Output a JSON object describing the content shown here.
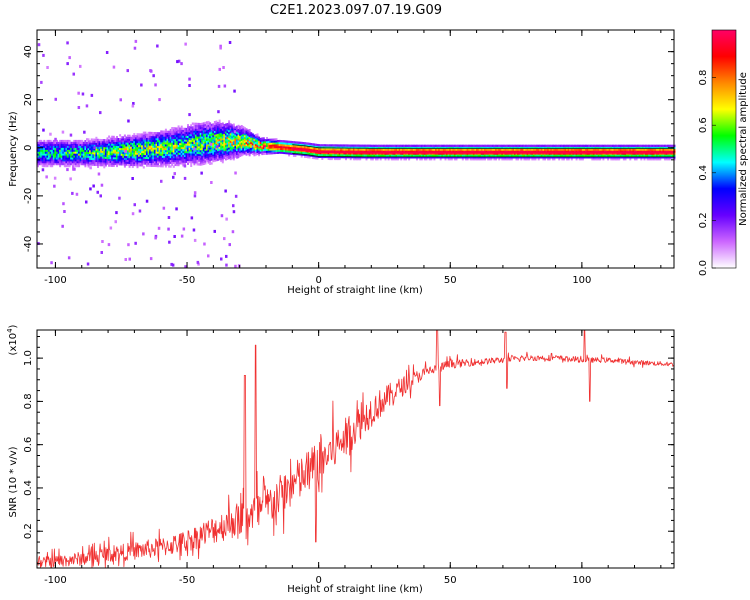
{
  "title": "C2E1.2023.097.07.19.G09",
  "chart_data": [
    {
      "type": "heatmap",
      "name": "spectrogram",
      "xlabel": "Height of straight line (km)",
      "ylabel": "Frequency (Hz)",
      "xlim": [
        -107,
        135
      ],
      "ylim": [
        -50,
        49
      ],
      "xticks": [
        -100,
        -50,
        0,
        50,
        100
      ],
      "xtick_labels": [
        "-100",
        "-50",
        "0",
        "50",
        "100"
      ],
      "yticks": [
        -40,
        -20,
        0,
        20,
        40
      ],
      "ytick_labels": [
        "-40",
        "-20",
        "0",
        "20",
        "40"
      ],
      "ridge": {
        "x": [
          -107,
          -90,
          -70,
          -55,
          -45,
          -35,
          -28,
          -22,
          -15,
          -5,
          0,
          20,
          50,
          100,
          135
        ],
        "y": [
          -2.5,
          -2.5,
          -1.5,
          0,
          1.5,
          2.5,
          2.2,
          0.5,
          0,
          -1,
          -1.8,
          -2,
          -2,
          -2,
          -2
        ],
        "spread_hz": [
          5,
          5,
          6,
          7,
          8,
          7,
          5,
          3,
          2.5,
          2.5,
          2.5,
          2.5,
          2.5,
          2.5,
          2.5
        ],
        "peak_amplitude": [
          0.5,
          0.55,
          0.65,
          0.6,
          0.6,
          0.7,
          0.75,
          0.85,
          0.95,
          0.95,
          0.97,
          0.97,
          0.97,
          0.98,
          0.98
        ]
      },
      "scatter_region": {
        "x_range": [
          -107,
          -30
        ],
        "y_range": [
          -50,
          45
        ],
        "amplitude": 0.15
      },
      "colorbar": {
        "label": "Normalized spectral amplitude",
        "range": [
          0,
          1
        ],
        "ticks": [
          0.0,
          0.2,
          0.4,
          0.6,
          0.8
        ],
        "tick_labels": [
          "0.0",
          "0.2",
          "0.4",
          "0.6",
          "0.8"
        ],
        "colors": [
          "#ffffff",
          "#cc66ff",
          "#6600ff",
          "#0000ff",
          "#00ffff",
          "#00ff00",
          "#ffff00",
          "#ff8800",
          "#ff0000",
          "#ff0066"
        ]
      }
    },
    {
      "type": "line",
      "name": "snr",
      "xlabel": "Height of straight line (km)",
      "ylabel": "SNR (10 * v/v)",
      "multiplier_label": "(x10",
      "multiplier_exp": "4",
      "multiplier_close": ")",
      "xlim": [
        -107,
        135
      ],
      "ylim": [
        0.03,
        1.13
      ],
      "xticks": [
        -100,
        -50,
        0,
        50,
        100
      ],
      "xtick_labels": [
        "-100",
        "-50",
        "0",
        "50",
        "100"
      ],
      "yticks": [
        0.2,
        0.4,
        0.6,
        0.8,
        1.0
      ],
      "ytick_labels": [
        "0.2",
        "0.4",
        "0.6",
        "0.8",
        "1.0"
      ],
      "color": "#f03030",
      "envelope": {
        "x": [
          -107,
          -90,
          -80,
          -60,
          -50,
          -40,
          -30,
          -20,
          -10,
          0,
          10,
          20,
          30,
          40,
          50,
          60,
          70,
          80,
          90,
          100,
          110,
          120,
          135
        ],
        "y": [
          0.05,
          0.07,
          0.09,
          0.12,
          0.15,
          0.2,
          0.25,
          0.3,
          0.4,
          0.5,
          0.62,
          0.75,
          0.85,
          0.93,
          0.97,
          0.98,
          0.99,
          1.0,
          1.0,
          0.99,
          0.99,
          0.98,
          0.97
        ]
      },
      "noise_amplitude": {
        "x": [
          -107,
          -50,
          -25,
          0,
          20,
          40,
          60,
          135
        ],
        "y": [
          0.05,
          0.1,
          0.18,
          0.22,
          0.15,
          0.05,
          0.03,
          0.02
        ]
      },
      "spikes": [
        {
          "x": -28,
          "y": 0.92
        },
        {
          "x": -24,
          "y": 1.06
        },
        {
          "x": -1,
          "y": 0.15
        },
        {
          "x": 45,
          "y": 1.13
        },
        {
          "x": 46,
          "y": 0.78
        },
        {
          "x": 71,
          "y": 1.12
        },
        {
          "x": 71.5,
          "y": 0.86
        },
        {
          "x": 101,
          "y": 1.13
        },
        {
          "x": 103,
          "y": 0.8
        }
      ]
    }
  ]
}
